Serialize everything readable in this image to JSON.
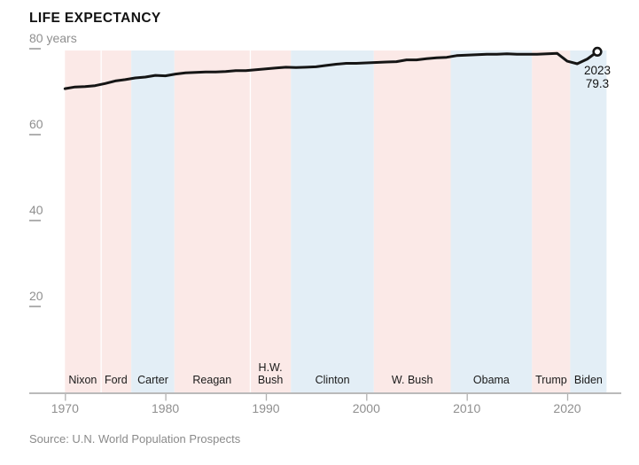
{
  "source_note": "Source: U.N. World Population Prospects",
  "colors": {
    "republican_band": "#fbe9e7",
    "democrat_band": "#e3eef6",
    "line": "#151515",
    "axis": "#b0b0b0",
    "tick_label": "#8f8f8f",
    "president_label": "#1a1a1a",
    "title": "#121212",
    "source_text": "#8a8a8a",
    "marker_fill": "#ffffff"
  },
  "chart_data": {
    "type": "line",
    "title": "LIFE EXPECTANCY",
    "xlabel": "",
    "ylabel": "years",
    "grid": false,
    "legend": "none",
    "xlim": [
      1966.4,
      2025.6
    ],
    "ylim": [
      0,
      82
    ],
    "xticks": [
      1970,
      1980,
      1990,
      2000,
      2010,
      2020
    ],
    "yticks": [
      {
        "value": 20,
        "label": "20"
      },
      {
        "value": 40,
        "label": "40"
      },
      {
        "value": 60,
        "label": "60"
      },
      {
        "value": 80,
        "label": "80 years"
      }
    ],
    "years": [
      1970,
      1971,
      1972,
      1973,
      1974,
      1975,
      1976,
      1977,
      1978,
      1979,
      1980,
      1981,
      1982,
      1983,
      1984,
      1985,
      1986,
      1987,
      1988,
      1989,
      1990,
      1991,
      1992,
      1993,
      1994,
      1995,
      1996,
      1997,
      1998,
      1999,
      2000,
      2001,
      2002,
      2003,
      2004,
      2005,
      2006,
      2007,
      2008,
      2009,
      2010,
      2011,
      2012,
      2013,
      2014,
      2015,
      2016,
      2017,
      2018,
      2019,
      2020,
      2021,
      2022,
      2023
    ],
    "values": [
      70.7,
      71.1,
      71.2,
      71.4,
      71.9,
      72.5,
      72.8,
      73.2,
      73.4,
      73.8,
      73.7,
      74.1,
      74.4,
      74.5,
      74.6,
      74.6,
      74.7,
      74.9,
      74.9,
      75.1,
      75.3,
      75.5,
      75.7,
      75.6,
      75.7,
      75.8,
      76.1,
      76.4,
      76.6,
      76.6,
      76.7,
      76.8,
      76.9,
      77.0,
      77.4,
      77.4,
      77.7,
      77.9,
      78.0,
      78.4,
      78.5,
      78.6,
      78.7,
      78.7,
      78.8,
      78.7,
      78.7,
      78.7,
      78.8,
      78.9,
      77.1,
      76.5,
      77.6,
      79.3
    ],
    "endpoint": {
      "year": 2023,
      "value": 79.3,
      "year_label": "2023",
      "value_label": "79.3"
    },
    "bands": [
      {
        "president": "Nixon",
        "party": "R",
        "start": 1970.0,
        "end": 1973.55
      },
      {
        "president": "Ford",
        "party": "R",
        "start": 1973.55,
        "end": 1976.6
      },
      {
        "president": "Carter",
        "party": "D",
        "start": 1976.6,
        "end": 1980.9
      },
      {
        "president": "Reagan",
        "party": "R",
        "start": 1980.9,
        "end": 1988.4
      },
      {
        "president": "H.W.\nBush",
        "party": "R",
        "start": 1988.4,
        "end": 1992.5
      },
      {
        "president": "Clinton",
        "party": "D",
        "start": 1992.5,
        "end": 2000.75
      },
      {
        "president": "W. Bush",
        "party": "R",
        "start": 2000.75,
        "end": 2008.4
      },
      {
        "president": "Obama",
        "party": "D",
        "start": 2008.4,
        "end": 2016.5
      },
      {
        "president": "Trump",
        "party": "R",
        "start": 2016.5,
        "end": 2020.3
      },
      {
        "president": "Biden",
        "party": "D",
        "start": 2020.3,
        "end": 2023.92
      }
    ]
  }
}
